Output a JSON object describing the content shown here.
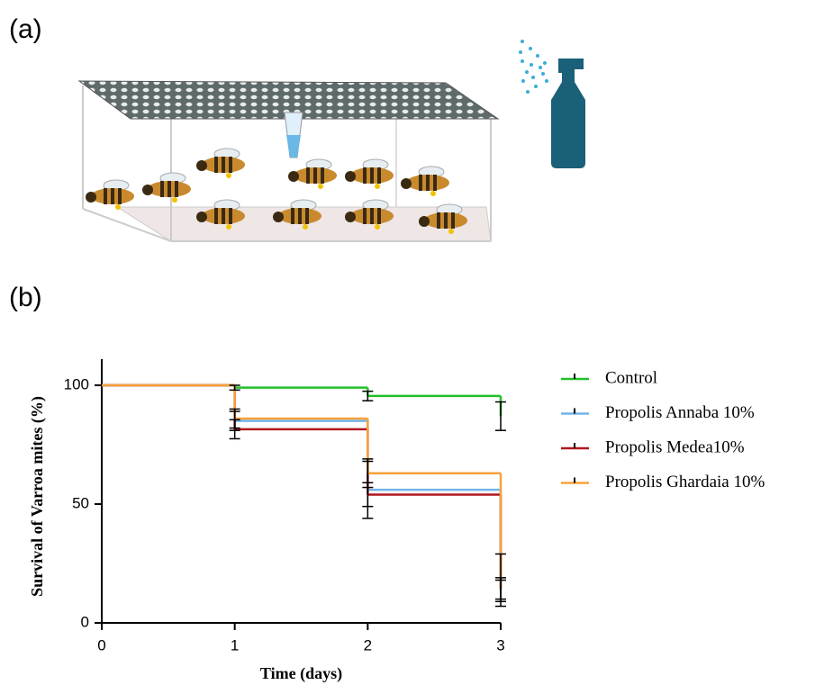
{
  "panel_labels": [
    "(a)",
    "(b)"
  ],
  "chart_data": {
    "type": "step",
    "xlabel": "Time (days)",
    "ylabel": "Survival of Varroa mites (%)",
    "x": [
      0,
      1,
      2,
      3
    ],
    "xlim": [
      0,
      3
    ],
    "ylim": [
      0,
      111
    ],
    "xticks": [
      0,
      1,
      2,
      3
    ],
    "yticks": [
      0,
      50,
      100
    ],
    "error_color": "#000000",
    "legend": "right",
    "series": [
      {
        "name": "Control",
        "color": "#22c02a",
        "values": [
          100,
          99,
          95.5,
          87
        ],
        "errors": [
          null,
          1,
          2,
          6
        ]
      },
      {
        "name": "Propolis Annaba 10%",
        "color": "#74b4e8",
        "values": [
          100,
          85,
          56,
          18
        ],
        "errors": [
          null,
          4,
          12,
          11
        ]
      },
      {
        "name": "Propolis Medea10%",
        "color": "#b0171f",
        "values": [
          100,
          81.5,
          54,
          14
        ],
        "errors": [
          null,
          4,
          5,
          5
        ]
      },
      {
        "name": "Propolis Ghardaia 10%",
        "color": "#f7a23a",
        "values": [
          100,
          86,
          63,
          14
        ],
        "errors": [
          null,
          4,
          6,
          4
        ]
      }
    ]
  }
}
